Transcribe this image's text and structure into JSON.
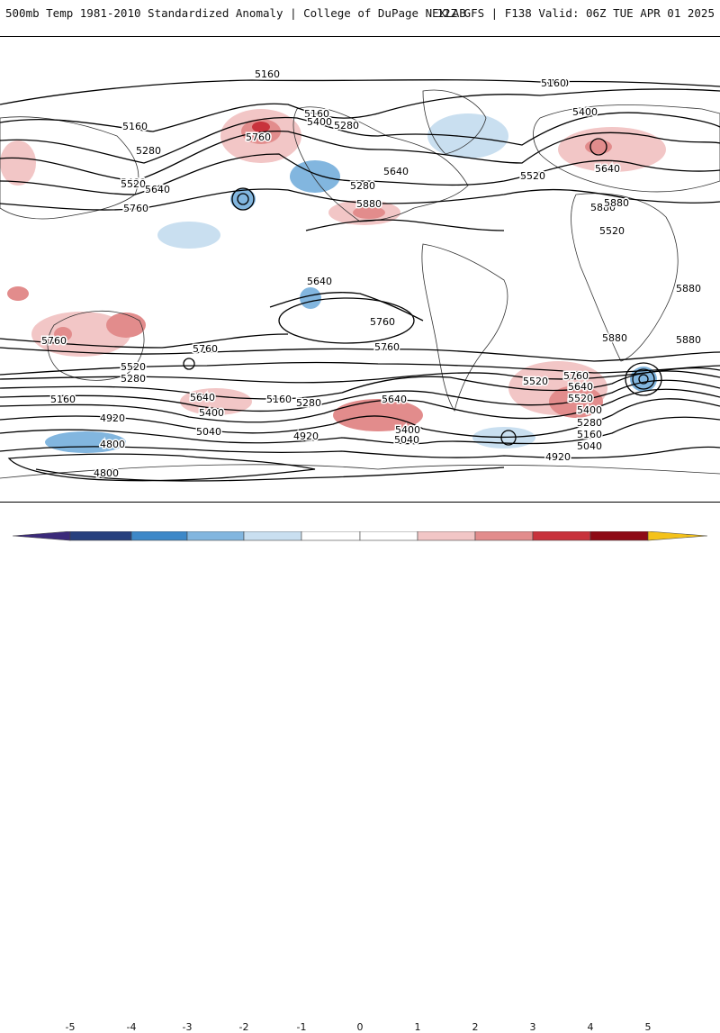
{
  "header": {
    "title": "500mb Temp 1981-2010 Standardized Anomaly | College of DuPage NEXLAB",
    "run_info": "12Z GFS | F138 Valid: 06Z TUE APR 01 2025"
  },
  "colorbar": {
    "ticks": [
      "-5",
      "-4",
      "-3",
      "-2",
      "-1",
      "0",
      "1",
      "2",
      "3",
      "4",
      "5"
    ],
    "colors": [
      "#3b2a7a",
      "#27407e",
      "#3d88c8",
      "#82b6df",
      "#c9dff0",
      "#ffffff",
      "#ffffff",
      "#f2c6c6",
      "#e28c8c",
      "#c8323c",
      "#8e0b16",
      "#f4c21a"
    ]
  },
  "map": {
    "ocean_color": "#ffffff",
    "contour_labels": [
      "5160",
      "5160",
      "5160",
      "5160",
      "5400",
      "5280",
      "5400",
      "5760",
      "5280",
      "5160",
      "5400",
      "5280",
      "5520",
      "5640",
      "5640",
      "5520",
      "5640",
      "5760",
      "5880",
      "5520",
      "5640",
      "5760",
      "5880",
      "5880",
      "5880",
      "5880",
      "5880",
      "5760",
      "5760",
      "5760",
      "5520",
      "5280",
      "5160",
      "4920",
      "4800",
      "4800",
      "5640",
      "5400",
      "5040",
      "5160",
      "5280",
      "4920",
      "5520",
      "5640",
      "5400",
      "5040",
      "5760",
      "5640",
      "5520",
      "5400",
      "5280",
      "5160",
      "5040",
      "4920"
    ]
  }
}
